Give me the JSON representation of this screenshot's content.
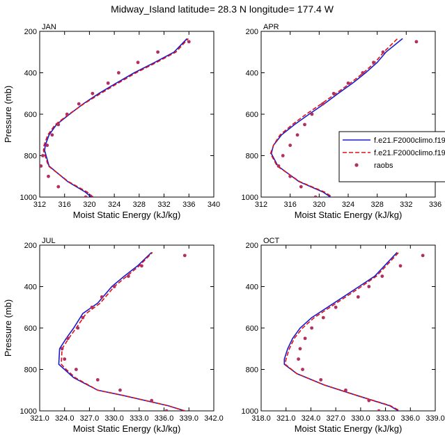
{
  "title": "Midway_Island  latitude= 28.3 N longitude= 177.4 W",
  "legend": {
    "entries": [
      {
        "label": "f.e21.F2000climo.f19",
        "color": "#1a1acc",
        "style": "solid"
      },
      {
        "label": "f.e21.F2000climo.f19",
        "color": "#e01010",
        "style": "dashed"
      },
      {
        "label": "raobs",
        "color": "#b03060",
        "style": "marker"
      }
    ],
    "placement": "right of APR panel"
  },
  "chart_data": [
    {
      "type": "line",
      "panel": "JAN",
      "xlabel": "Moist Static Energy (kJ/kg)",
      "ylabel": "Pressure (mb)",
      "xlim": [
        312,
        340
      ],
      "ylim": [
        1000,
        200
      ],
      "xticks": [
        "312",
        "316",
        "320",
        "324",
        "328",
        "332",
        "336",
        "340"
      ],
      "yticks": [
        "200",
        "400",
        "600",
        "800",
        "1000"
      ],
      "series": [
        {
          "name": "f.e21.F2000climo.f19",
          "color": "#1a1acc",
          "x": [
            320.3,
            319.3,
            316.5,
            313.5,
            312.8,
            312.9,
            313.5,
            314.7,
            316.8,
            319.0,
            321.5,
            324.3,
            327.2,
            330.5,
            333.6,
            335.7
          ],
          "y": [
            1000,
            975,
            925,
            850,
            775,
            750,
            700,
            650,
            600,
            550,
            500,
            450,
            400,
            350,
            300,
            235
          ]
        },
        {
          "name": "f.e21.F2000climo.f19",
          "color": "#e01010",
          "dashed": true,
          "x": [
            320.6,
            319.6,
            316.6,
            313.4,
            312.6,
            312.7,
            313.3,
            314.5,
            316.7,
            319.1,
            321.8,
            324.6,
            327.5,
            330.8,
            333.9,
            335.9
          ],
          "y": [
            1000,
            975,
            925,
            850,
            775,
            750,
            700,
            650,
            600,
            550,
            500,
            450,
            400,
            350,
            300,
            235
          ]
        }
      ],
      "raobs": {
        "x": [
          319.4,
          315.0,
          313.4,
          312.2,
          312.5,
          313.2,
          314.0,
          315.0,
          316.4,
          318.3,
          320.5,
          323.0,
          324.7,
          327.8,
          331.0,
          336.0
        ],
        "y": [
          1000,
          950,
          900,
          850,
          800,
          750,
          700,
          650,
          600,
          550,
          500,
          450,
          400,
          350,
          300,
          250
        ]
      }
    },
    {
      "type": "line",
      "panel": "APR",
      "xlabel": "Moist Static Energy (kJ/kg)",
      "ylabel": "",
      "xlim": [
        312,
        336
      ],
      "ylim": [
        1000,
        200
      ],
      "xticks": [
        "312",
        "316",
        "320",
        "324",
        "328",
        "332",
        "336"
      ],
      "yticks": [
        "200",
        "400",
        "600",
        "800",
        "1000"
      ],
      "series": [
        {
          "name": "f.e21.F2000climo.f19",
          "color": "#1a1acc",
          "x": [
            322.0,
            320.5,
            317.2,
            314.3,
            313.4,
            313.7,
            314.8,
            316.6,
            318.6,
            320.7,
            322.6,
            324.6,
            326.4,
            328.0,
            329.2,
            331.5
          ],
          "y": [
            1010,
            975,
            925,
            850,
            790,
            750,
            700,
            650,
            600,
            550,
            500,
            450,
            400,
            350,
            300,
            235
          ]
        },
        {
          "name": "f.e21.F2000climo.f19",
          "color": "#e01010",
          "dashed": true,
          "x": [
            322.3,
            320.7,
            317.3,
            314.2,
            313.3,
            313.7,
            314.6,
            316.3,
            318.2,
            320.3,
            322.3,
            324.3,
            326.1,
            327.7,
            328.9,
            330.8
          ],
          "y": [
            1010,
            975,
            925,
            850,
            790,
            750,
            700,
            650,
            600,
            550,
            500,
            450,
            400,
            350,
            300,
            235
          ]
        }
      ],
      "raobs": {
        "x": [
          319.5,
          317.5,
          316.0,
          314.4,
          315.0,
          316.0,
          317.0,
          318.0,
          319.0,
          320.5,
          322.0,
          324.0,
          326.0,
          327.5,
          328.8,
          333.4
        ],
        "y": [
          1000,
          950,
          900,
          850,
          800,
          750,
          700,
          650,
          600,
          550,
          500,
          450,
          400,
          350,
          300,
          250
        ]
      }
    },
    {
      "type": "line",
      "panel": "JUL",
      "xlabel": "Moist Static Energy (kJ/kg)",
      "ylabel": "Pressure (mb)",
      "xlim": [
        321,
        342
      ],
      "ylim": [
        1000,
        200
      ],
      "xticks": [
        "321.0",
        "324.0",
        "327.0",
        "330.0",
        "333.0",
        "336.0",
        "339.0",
        "342.0"
      ],
      "yticks": [
        "200",
        "400",
        "600",
        "800",
        "1000"
      ],
      "series": [
        {
          "name": "f.e21.F2000climo.f19",
          "color": "#1a1acc",
          "x": [
            339.3,
            336.5,
            331.0,
            328.0,
            325.1,
            324.0,
            323.3,
            323.4,
            324.2,
            325.1,
            326.2,
            328.0,
            329.7,
            331.2,
            332.8,
            334.5
          ],
          "y": [
            1010,
            975,
            925,
            900,
            840,
            800,
            775,
            700,
            650,
            600,
            530,
            480,
            400,
            350,
            300,
            235
          ]
        },
        {
          "name": "f.e21.F2000climo.f19",
          "color": "#e01010",
          "dashed": true,
          "x": [
            339.3,
            336.5,
            331.0,
            328.0,
            325.3,
            324.2,
            323.6,
            323.7,
            324.5,
            325.4,
            326.6,
            328.3,
            330.0,
            331.5,
            333.0,
            334.6
          ],
          "y": [
            1010,
            975,
            925,
            900,
            840,
            800,
            775,
            700,
            650,
            600,
            530,
            480,
            400,
            350,
            300,
            235
          ]
        }
      ],
      "raobs": {
        "x": [
          336.3,
          334.5,
          330.7,
          328.0,
          325.4,
          324.0,
          323.7,
          324.4,
          325.6,
          326.2,
          327.3,
          328.5,
          330.0,
          331.7,
          333.3,
          338.5
        ],
        "y": [
          1000,
          950,
          900,
          850,
          800,
          750,
          700,
          650,
          600,
          550,
          500,
          450,
          400,
          350,
          300,
          250
        ]
      }
    },
    {
      "type": "line",
      "panel": "OCT",
      "xlabel": "Moist Static Energy (kJ/kg)",
      "ylabel": "",
      "xlim": [
        318,
        339
      ],
      "ylim": [
        1000,
        200
      ],
      "xticks": [
        "318.0",
        "321.0",
        "324.0",
        "327.0",
        "330.0",
        "333.0",
        "336.0",
        "339.0"
      ],
      "yticks": [
        "200",
        "400",
        "600",
        "800",
        "1000"
      ],
      "series": [
        {
          "name": "f.e21.F2000climo.f19",
          "color": "#1a1acc",
          "x": [
            335.0,
            333.5,
            329.5,
            325.6,
            322.3,
            320.8,
            320.8,
            321.2,
            321.8,
            322.7,
            324.1,
            326.0,
            327.9,
            329.8,
            331.7,
            334.4
          ],
          "y": [
            1010,
            975,
            925,
            875,
            820,
            775,
            750,
            700,
            650,
            600,
            550,
            500,
            450,
            400,
            350,
            235
          ]
        },
        {
          "name": "f.e21.F2000climo.f19",
          "color": "#e01010",
          "dashed": true,
          "x": [
            335.2,
            333.6,
            329.5,
            325.6,
            322.3,
            320.9,
            321.0,
            321.4,
            322.0,
            323.0,
            324.4,
            326.3,
            328.2,
            330.1,
            331.9,
            334.6
          ],
          "y": [
            1010,
            975,
            925,
            875,
            820,
            775,
            750,
            700,
            650,
            600,
            550,
            500,
            450,
            400,
            350,
            235
          ]
        }
      ],
      "raobs": {
        "x": [
          332.2,
          331.0,
          328.2,
          325.2,
          323.0,
          322.5,
          322.7,
          323.3,
          324.1,
          325.5,
          327.0,
          329.7,
          331.0,
          332.6,
          334.8,
          337.5
        ],
        "y": [
          1000,
          950,
          900,
          850,
          800,
          750,
          700,
          650,
          600,
          550,
          500,
          450,
          400,
          350,
          300,
          250
        ]
      }
    }
  ]
}
